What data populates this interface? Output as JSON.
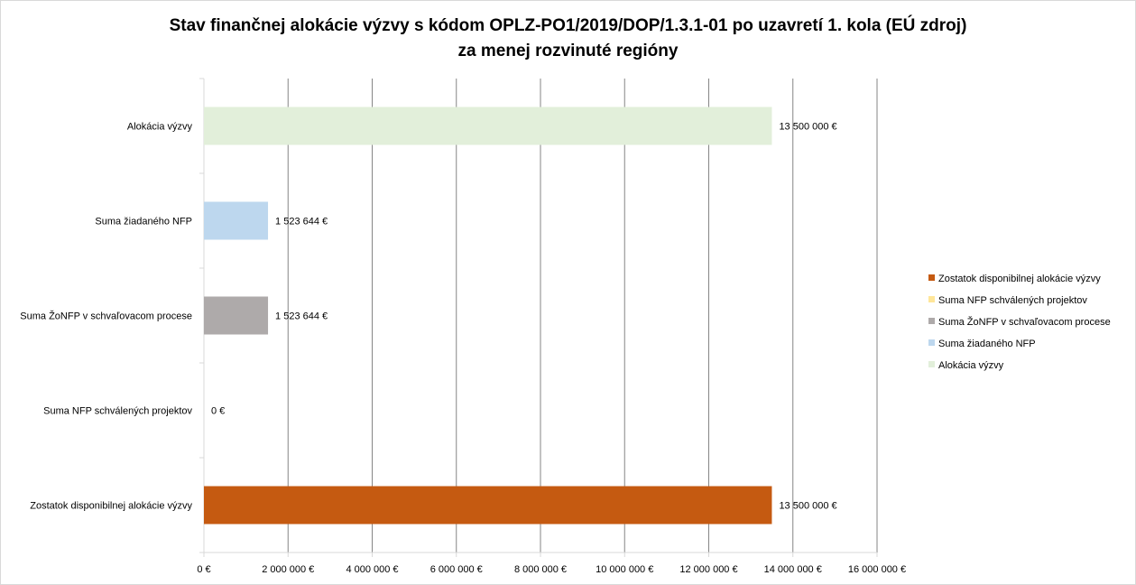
{
  "chart_data": {
    "type": "bar",
    "orientation": "horizontal",
    "title": "Stav finančnej alokácie výzvy s kódom OPLZ-PO1/2019/DOP/1.3.1-01 po uzavretí 1. kola (EÚ zdroj)",
    "subtitle": "za menej rozvinuté regióny",
    "categories": [
      "Alokácia výzvy",
      "Suma žiadaného NFP",
      "Suma ŽoNFP v schvaľovacom procese",
      "Suma NFP schválených projektov",
      "Zostatok disponibilnej alokácie výzvy"
    ],
    "values": [
      13500000,
      1523644,
      1523644,
      0,
      13500000
    ],
    "value_labels": [
      "13 500 000 €",
      "1 523 644 €",
      "1 523 644 €",
      "0 €",
      "13 500 000 €"
    ],
    "colors": [
      "#e2efda",
      "#bdd7ee",
      "#aeaaaa",
      "#ffe699",
      "#c55a11"
    ],
    "xlim": [
      0,
      16000000
    ],
    "x_ticks": [
      0,
      2000000,
      4000000,
      6000000,
      8000000,
      10000000,
      12000000,
      14000000,
      16000000
    ],
    "x_tick_labels": [
      "0 €",
      "2 000 000 €",
      "4 000 000 €",
      "6 000 000 €",
      "8 000 000 €",
      "10 000 000 €",
      "12 000 000 €",
      "14 000 000 €",
      "16 000 000 €"
    ],
    "grid": true,
    "legend_position": "right",
    "legend": [
      {
        "label": "Zostatok disponibilnej alokácie výzvy",
        "color": "#c55a11"
      },
      {
        "label": "Suma NFP schválených projektov",
        "color": "#ffe699"
      },
      {
        "label": "Suma ŽoNFP v schvaľovacom procese",
        "color": "#aeaaaa"
      },
      {
        "label": "Suma žiadaného NFP",
        "color": "#bdd7ee"
      },
      {
        "label": "Alokácia výzvy",
        "color": "#e2efda"
      }
    ],
    "gridline_color": "#868686",
    "axis_color": "#d9d9d9"
  }
}
